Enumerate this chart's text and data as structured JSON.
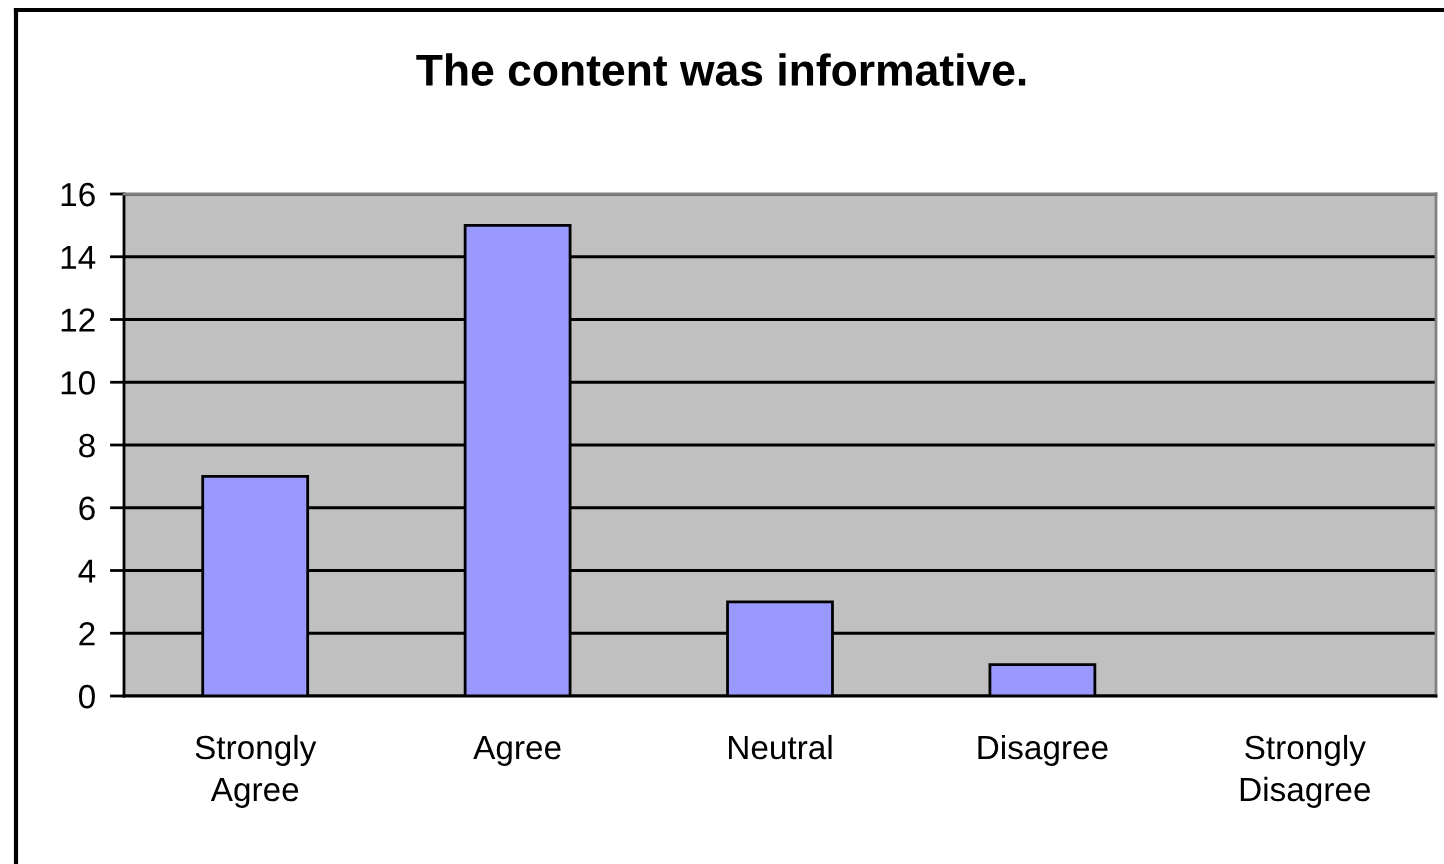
{
  "chart_data": {
    "type": "bar",
    "title": "The content was informative.",
    "categories": [
      "Strongly Agree",
      "Agree",
      "Neutral",
      "Disagree",
      "Strongly Disagree"
    ],
    "values": [
      7,
      15,
      3,
      1,
      0
    ],
    "color": "#9999ff",
    "ylim": [
      0,
      16
    ],
    "yticks": [
      0,
      2,
      4,
      6,
      8,
      10,
      12,
      14,
      16
    ],
    "grid": "y"
  }
}
